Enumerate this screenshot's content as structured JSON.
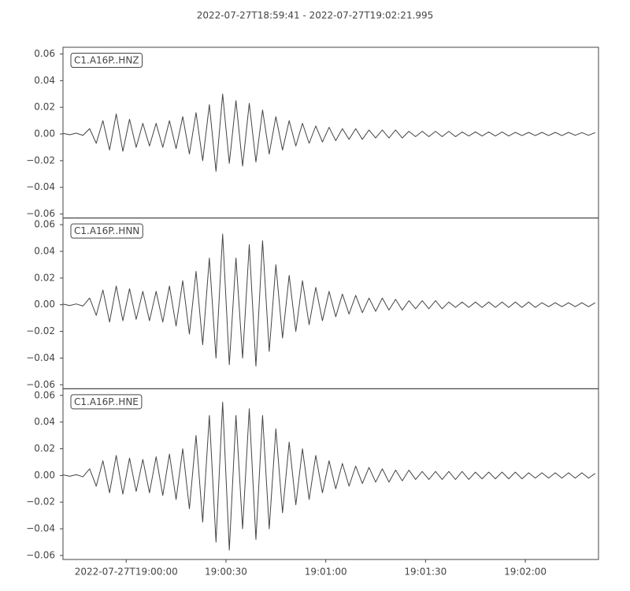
{
  "chart_data": {
    "type": "line",
    "title": "2022-07-27T18:59:41  -  2022-07-27T19:02:21.995",
    "x": [
      0,
      2,
      4,
      6,
      8,
      10,
      12,
      14,
      16,
      18,
      20,
      22,
      24,
      26,
      28,
      30,
      32,
      34,
      36,
      38,
      40,
      42,
      44,
      46,
      48,
      50,
      52,
      54,
      56,
      58,
      60,
      62,
      64,
      66,
      68,
      70,
      72,
      74,
      76,
      78,
      80,
      82,
      84,
      86,
      88,
      90,
      92,
      94,
      96,
      98,
      100,
      102,
      104,
      106,
      108,
      110,
      112,
      114,
      116,
      118,
      120,
      122,
      124,
      126,
      128,
      130,
      132,
      134,
      136,
      138,
      140,
      142,
      144,
      146,
      148,
      150,
      152,
      154,
      156,
      158,
      160
    ],
    "xlim": [
      0,
      161
    ],
    "xticks": [
      {
        "value": 19,
        "label": "2022-07-27T19:00:00"
      },
      {
        "value": 49,
        "label": "19:00:30"
      },
      {
        "value": 79,
        "label": "19:01:00"
      },
      {
        "value": 109,
        "label": "19:01:30"
      },
      {
        "value": 139,
        "label": "19:02:00"
      }
    ],
    "ylim": [
      -0.063,
      0.065
    ],
    "yticks": [
      {
        "value": -0.06,
        "label": "−0.06"
      },
      {
        "value": -0.04,
        "label": "−0.04"
      },
      {
        "value": -0.02,
        "label": "−0.02"
      },
      {
        "value": 0,
        "label": "0.00"
      },
      {
        "value": 0.02,
        "label": "0.02"
      },
      {
        "value": 0.04,
        "label": "0.04"
      },
      {
        "value": 0.06,
        "label": "0.06"
      }
    ],
    "series": [
      {
        "name": "C1.A16P..HNZ",
        "color": "#444444",
        "values": [
          0.0005,
          -0.0006,
          0.0006,
          -0.001,
          0.004,
          -0.007,
          0.01,
          -0.012,
          0.015,
          -0.013,
          0.011,
          -0.01,
          0.008,
          -0.009,
          0.008,
          -0.01,
          0.01,
          -0.011,
          0.013,
          -0.015,
          0.016,
          -0.02,
          0.022,
          -0.028,
          0.03,
          -0.022,
          0.025,
          -0.024,
          0.023,
          -0.021,
          0.018,
          -0.015,
          0.013,
          -0.012,
          0.01,
          -0.009,
          0.008,
          -0.007,
          0.006,
          -0.006,
          0.005,
          -0.005,
          0.004,
          -0.004,
          0.004,
          -0.004,
          0.003,
          -0.003,
          0.003,
          -0.003,
          0.003,
          -0.003,
          0.002,
          -0.002,
          0.002,
          -0.002,
          0.002,
          -0.002,
          0.002,
          -0.002,
          0.0015,
          -0.0015,
          0.0015,
          -0.0015,
          0.0015,
          -0.0015,
          0.0015,
          -0.0015,
          0.0012,
          -0.0012,
          0.0012,
          -0.0012,
          0.0012,
          -0.0012,
          0.0012,
          -0.0012,
          0.0012,
          -0.001,
          0.001,
          -0.001,
          0.001
        ]
      },
      {
        "name": "C1.A16P..HNN",
        "color": "#444444",
        "values": [
          0.0005,
          -0.0006,
          0.0006,
          -0.001,
          0.005,
          -0.008,
          0.011,
          -0.013,
          0.014,
          -0.012,
          0.012,
          -0.011,
          0.01,
          -0.012,
          0.01,
          -0.013,
          0.014,
          -0.016,
          0.018,
          -0.022,
          0.025,
          -0.03,
          0.035,
          -0.04,
          0.053,
          -0.045,
          0.035,
          -0.04,
          0.045,
          -0.046,
          0.048,
          -0.035,
          0.03,
          -0.025,
          0.022,
          -0.02,
          0.018,
          -0.015,
          0.013,
          -0.012,
          0.01,
          -0.009,
          0.008,
          -0.007,
          0.007,
          -0.006,
          0.005,
          -0.005,
          0.005,
          -0.004,
          0.004,
          -0.004,
          0.003,
          -0.003,
          0.003,
          -0.003,
          0.003,
          -0.003,
          0.002,
          -0.002,
          0.002,
          -0.002,
          0.002,
          -0.002,
          0.002,
          -0.002,
          0.002,
          -0.002,
          0.002,
          -0.002,
          0.002,
          -0.002,
          0.0015,
          -0.0015,
          0.0015,
          -0.0015,
          0.0015,
          -0.0015,
          0.0015,
          -0.0015,
          0.0015
        ]
      },
      {
        "name": "C1.A16P..HNE",
        "color": "#444444",
        "values": [
          0.0005,
          -0.0006,
          0.0006,
          -0.001,
          0.005,
          -0.008,
          0.011,
          -0.013,
          0.015,
          -0.014,
          0.013,
          -0.012,
          0.012,
          -0.013,
          0.014,
          -0.015,
          0.016,
          -0.018,
          0.02,
          -0.025,
          0.03,
          -0.035,
          0.045,
          -0.05,
          0.055,
          -0.056,
          0.045,
          -0.04,
          0.05,
          -0.048,
          0.045,
          -0.04,
          0.035,
          -0.028,
          0.025,
          -0.022,
          0.02,
          -0.018,
          0.015,
          -0.013,
          0.011,
          -0.01,
          0.009,
          -0.008,
          0.007,
          -0.006,
          0.006,
          -0.005,
          0.005,
          -0.005,
          0.004,
          -0.004,
          0.004,
          -0.003,
          0.003,
          -0.003,
          0.003,
          -0.003,
          0.003,
          -0.003,
          0.003,
          -0.003,
          0.0025,
          -0.0025,
          0.0025,
          -0.0025,
          0.0025,
          -0.0025,
          0.0025,
          -0.0025,
          0.002,
          -0.002,
          0.002,
          -0.002,
          0.002,
          -0.002,
          0.002,
          -0.002,
          0.002,
          -0.002,
          0.0015
        ]
      }
    ]
  }
}
